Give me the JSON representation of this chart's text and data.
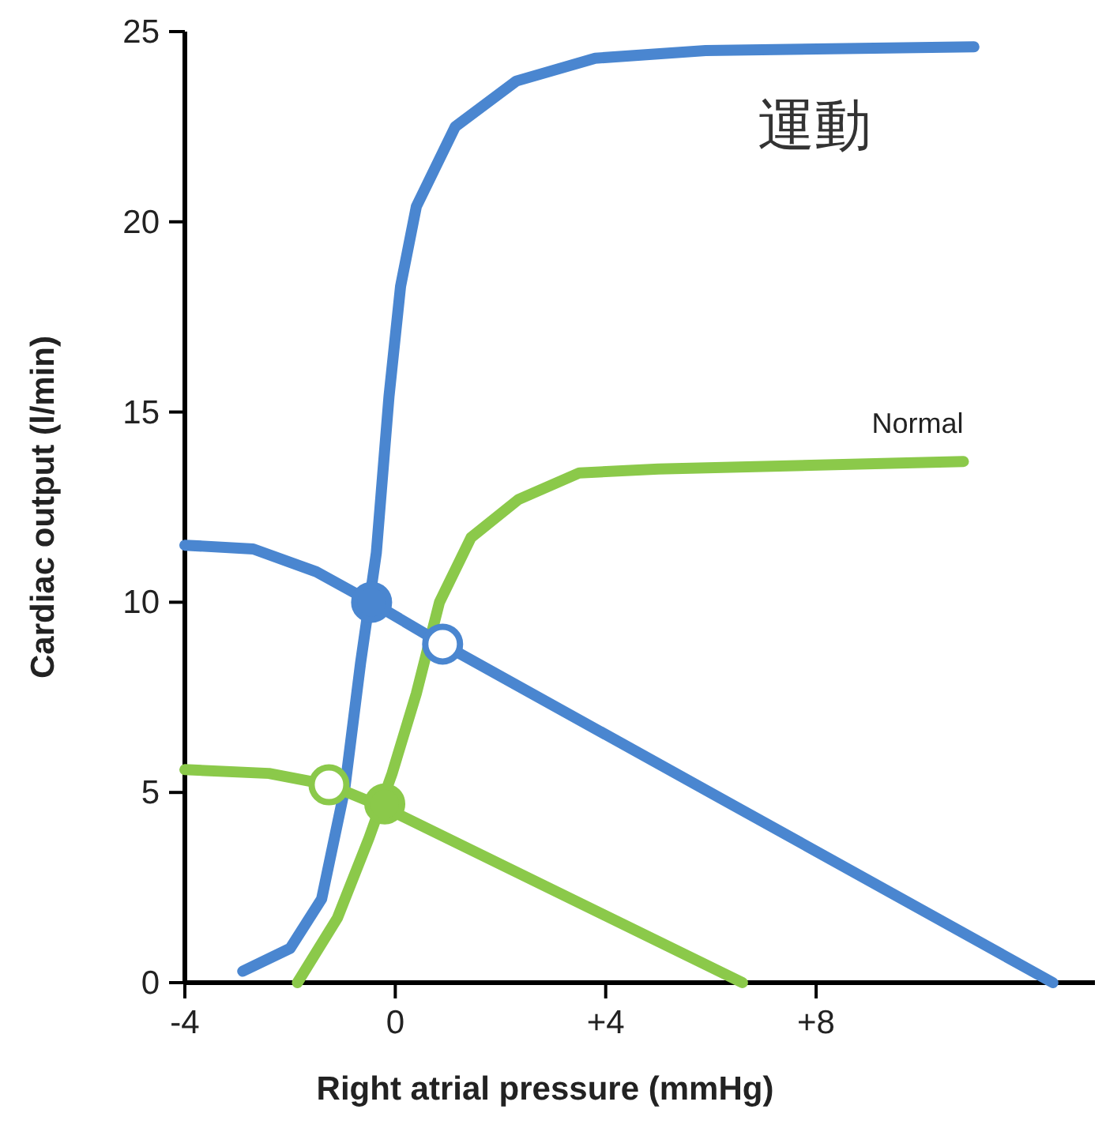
{
  "chart_data": {
    "type": "line",
    "xlabel": "Right atrial pressure (mmHg)",
    "ylabel": "Cardiac output (l/min)",
    "xlim": [
      -4,
      13.3
    ],
    "ylim": [
      0,
      25
    ],
    "xticks": [
      -4,
      0,
      {
        "value": 4,
        "label": "+4"
      },
      {
        "value": 8,
        "label": "+8"
      }
    ],
    "yticks": [
      0,
      5,
      10,
      15,
      20,
      25
    ],
    "grid": false,
    "line_style": "solid",
    "series": [
      {
        "name": "運動",
        "color": "#4a86d0",
        "x": [
          -2.9,
          -2,
          -1.4,
          -0.96,
          -0.66,
          -0.36,
          -0.12,
          0.1,
          0.4,
          1.14,
          2.3,
          3.8,
          5.9,
          11
        ],
        "values": [
          0.3,
          0.9,
          2.2,
          5.1,
          8.4,
          11.3,
          15.4,
          18.3,
          20.4,
          22.5,
          23.7,
          24.3,
          24.5,
          24.6
        ]
      },
      {
        "name": "Normal",
        "color": "#8bc94a",
        "x": [
          -1.86,
          -1.1,
          -0.5,
          -0.06,
          0.4,
          0.84,
          1.44,
          2.34,
          3.5,
          5,
          10.8
        ],
        "values": [
          0,
          1.7,
          3.8,
          5.5,
          7.6,
          10,
          11.7,
          12.7,
          13.4,
          13.5,
          13.7
        ]
      },
      {
        "color": "#4a86d0",
        "x": [
          -4,
          -2.7,
          -1.5,
          -0.45,
          0.9,
          12.5
        ],
        "values": [
          11.5,
          11.4,
          10.8,
          10,
          8.9,
          0
        ]
      },
      {
        "color": "#8bc94a",
        "x": [
          -4,
          -2.4,
          -1.26,
          -0.2,
          6.6
        ],
        "values": [
          5.6,
          5.5,
          5.2,
          4.6,
          0
        ]
      },
      {
        "type": "scatter",
        "marker": "circle",
        "color": "#4a86d0",
        "x": [
          -0.45
        ],
        "values": [
          10
        ]
      },
      {
        "type": "scatter",
        "marker": "circle",
        "color": "#4a86d0",
        "x": [
          0.9
        ],
        "values": [
          8.9
        ]
      },
      {
        "type": "scatter",
        "marker": "circle",
        "color": "#8bc94a",
        "x": [
          -0.2
        ],
        "values": [
          4.7
        ]
      },
      {
        "type": "scatter",
        "marker": "circle",
        "color": "#8bc94a",
        "x": [
          -1.26
        ],
        "values": [
          5.2
        ]
      }
    ]
  }
}
